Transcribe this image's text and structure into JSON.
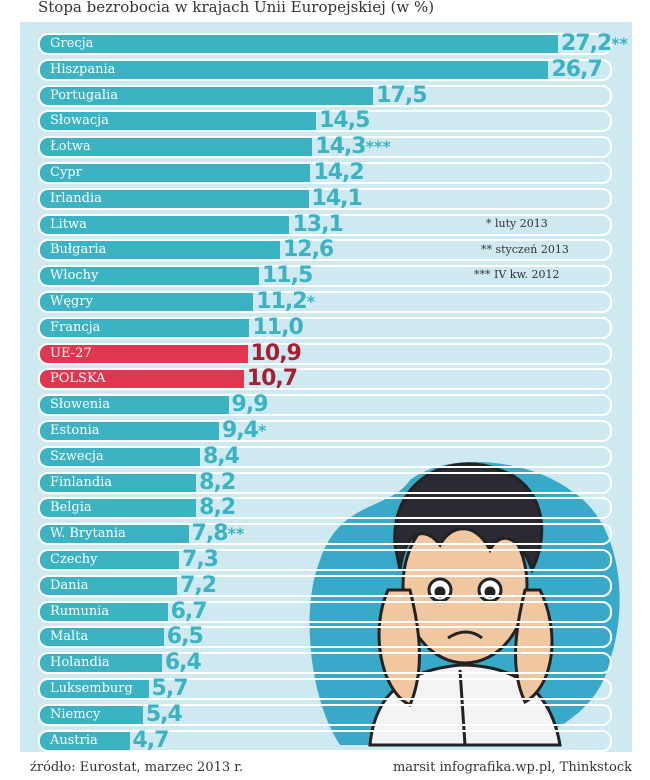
{
  "chart_data": {
    "type": "bar",
    "orientation": "horizontal",
    "title": "Stopa bezrobocia w krajach Unii Europejskiej (w %)",
    "xlim": [
      0,
      27.2
    ],
    "grid": false,
    "categories": [
      "Grecja",
      "Hiszpania",
      "Portugalia",
      "Słowacja",
      "Łotwa",
      "Cypr",
      "Irlandia",
      "Litwa",
      "Bułgaria",
      "Włochy",
      "Węgry",
      "Francja",
      "UE-27",
      "POLSKA",
      "Słowenia",
      "Estonia",
      "Szwecja",
      "Finlandia",
      "Belgia",
      "W. Brytania",
      "Czechy",
      "Dania",
      "Rumunia",
      "Malta",
      "Holandia",
      "Luksemburg",
      "Niemcy",
      "Austria"
    ],
    "values": [
      27.2,
      26.7,
      17.5,
      14.5,
      14.3,
      14.2,
      14.1,
      13.1,
      12.6,
      11.5,
      11.2,
      11.0,
      10.9,
      10.7,
      9.9,
      9.4,
      8.4,
      8.2,
      8.2,
      7.8,
      7.3,
      7.2,
      6.7,
      6.5,
      6.4,
      5.7,
      5.4,
      4.7
    ],
    "value_labels": [
      "27,2",
      "26,7",
      "17,5",
      "14,5",
      "14,3",
      "14,2",
      "14,1",
      "13,1",
      "12,6",
      "11,5",
      "11,2",
      "11,0",
      "10,9",
      "10,7",
      "9,9",
      "9,4",
      "8,4",
      "8,2",
      "8,2",
      "7,8",
      "7,3",
      "7,2",
      "6,7",
      "6,5",
      "6,4",
      "5,7",
      "5,4",
      "4,7"
    ],
    "marks": [
      "**",
      "",
      "",
      "",
      "***",
      "",
      "",
      "",
      "",
      "",
      "*",
      "",
      "",
      "",
      "",
      "*",
      "",
      "",
      "",
      "**",
      "",
      "",
      "",
      "",
      "",
      "",
      "",
      ""
    ],
    "highlighted": [
      "UE-27",
      "POLSKA"
    ],
    "footnotes": [
      "* luty 2013",
      "** styczeń 2013",
      "*** IV kw. 2012"
    ]
  },
  "colors": {
    "bar": "#3bb3c3",
    "bar_value": "#3bb3c3",
    "highlight": "#e03650",
    "highlight_value": "#a81f33",
    "background": "#cfe9f0",
    "track": "#ffffff",
    "mark": "#3bb3c3"
  },
  "footer": {
    "source": "źródło: Eurostat, marzec 2013 r.",
    "credit": "marsit infografika.wp.pl, Thinkstock"
  }
}
